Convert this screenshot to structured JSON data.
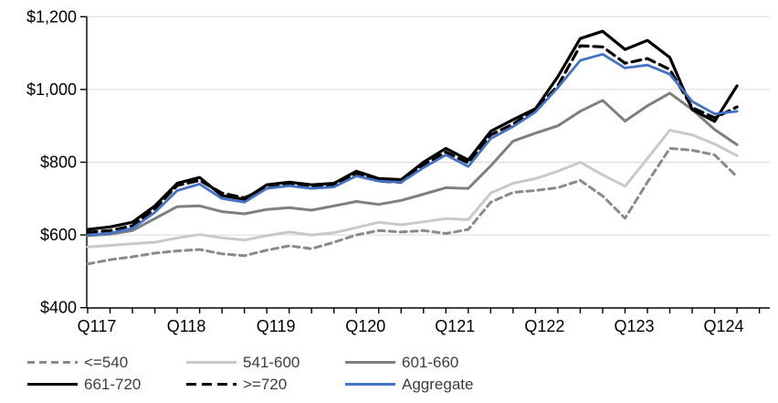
{
  "chart": {
    "y_axis": {
      "min": 400,
      "max": 1200,
      "step": 200,
      "tick_labels": [
        "$400",
        "$600",
        "$800",
        "$1,000",
        "$1,200"
      ]
    },
    "x_axis": {
      "tick_labels": [
        "Q117",
        "Q118",
        "Q119",
        "Q120",
        "Q121",
        "Q122",
        "Q123",
        "Q124"
      ]
    },
    "colors": {
      "grid": "#d9d9d9",
      "axis": "#000000",
      "text": "#3d3d3d"
    }
  },
  "chart_data": {
    "type": "line",
    "title": "",
    "xlabel": "",
    "ylabel": "",
    "ylim": [
      400,
      1200
    ],
    "grid": "horizontal",
    "legend_position": "bottom",
    "x": [
      "Q117",
      "Q217",
      "Q317",
      "Q417",
      "Q118",
      "Q218",
      "Q318",
      "Q418",
      "Q119",
      "Q219",
      "Q319",
      "Q419",
      "Q120",
      "Q220",
      "Q320",
      "Q420",
      "Q121",
      "Q221",
      "Q321",
      "Q421",
      "Q122",
      "Q222",
      "Q322",
      "Q422",
      "Q123",
      "Q223",
      "Q323",
      "Q423",
      "Q124",
      "Q224"
    ],
    "series": [
      {
        "name": "<=540",
        "color": "#8a8a8a",
        "style": "dashed",
        "width": 3,
        "dash": "7 5",
        "values": [
          520,
          532,
          540,
          550,
          556,
          560,
          548,
          543,
          558,
          570,
          562,
          580,
          600,
          612,
          608,
          612,
          604,
          615,
          690,
          717,
          722,
          730,
          750,
          707,
          646,
          745,
          838,
          833,
          820,
          760
        ]
      },
      {
        "name": "541-600",
        "color": "#c9c9c9",
        "style": "solid",
        "width": 3,
        "dash": "",
        "values": [
          567,
          571,
          576,
          580,
          592,
          601,
          592,
          586,
          598,
          608,
          600,
          606,
          620,
          635,
          628,
          636,
          645,
          642,
          715,
          742,
          755,
          775,
          800,
          765,
          734,
          810,
          888,
          875,
          850,
          818
        ]
      },
      {
        "name": "601-660",
        "color": "#7f7f7f",
        "style": "solid",
        "width": 3,
        "dash": "",
        "values": [
          598,
          602,
          612,
          645,
          678,
          680,
          664,
          658,
          670,
          675,
          668,
          680,
          692,
          684,
          695,
          712,
          730,
          728,
          790,
          858,
          880,
          900,
          940,
          970,
          913,
          955,
          990,
          945,
          890,
          848
        ]
      },
      {
        "name": ">=720",
        "color": "#000000",
        "style": "dashed",
        "width": 3.2,
        "dash": "10 6",
        "values": [
          607,
          612,
          625,
          672,
          736,
          750,
          715,
          702,
          730,
          737,
          730,
          735,
          768,
          748,
          745,
          792,
          828,
          798,
          875,
          905,
          945,
          1010,
          1120,
          1117,
          1072,
          1085,
          1055,
          950,
          922,
          952
        ]
      },
      {
        "name": "661-720",
        "color": "#000000",
        "style": "solid",
        "width": 3.2,
        "dash": "",
        "values": [
          615,
          622,
          635,
          680,
          742,
          758,
          708,
          698,
          738,
          745,
          738,
          742,
          775,
          755,
          752,
          800,
          838,
          806,
          885,
          917,
          947,
          1035,
          1140,
          1160,
          1110,
          1135,
          1088,
          945,
          912,
          1010
        ]
      },
      {
        "name": "Aggregate",
        "color": "#4472c4",
        "style": "solid",
        "width": 2.8,
        "dash": "",
        "values": [
          600,
          605,
          618,
          662,
          722,
          740,
          700,
          690,
          728,
          735,
          728,
          732,
          762,
          748,
          745,
          785,
          820,
          788,
          865,
          898,
          938,
          1005,
          1080,
          1097,
          1059,
          1067,
          1042,
          967,
          933,
          940
        ]
      }
    ],
    "legend": {
      "rows": [
        [
          {
            "series_index": 0
          },
          {
            "series_index": 1
          },
          {
            "series_index": 2
          }
        ],
        [
          {
            "series_index": 4
          },
          {
            "series_index": 3
          },
          {
            "series_index": 5
          }
        ]
      ]
    }
  }
}
